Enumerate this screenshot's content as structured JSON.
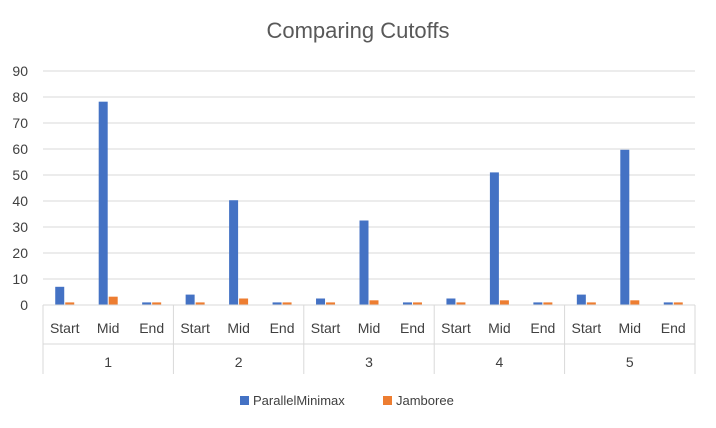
{
  "chart_data": {
    "type": "bar",
    "title": "Comparing Cutoffs",
    "xlabel": "",
    "ylabel": "",
    "ylim": [
      0,
      90
    ],
    "yticks": [
      0,
      10,
      20,
      30,
      40,
      50,
      60,
      70,
      80,
      90
    ],
    "grid": true,
    "legend_position": "bottom",
    "groups": [
      "1",
      "2",
      "3",
      "4",
      "5"
    ],
    "subcategories": [
      "Start",
      "Mid",
      "End"
    ],
    "series": [
      {
        "name": "ParallelMinimax",
        "color": "#4472C4",
        "values": [
          7,
          78.2,
          1,
          4,
          40.3,
          1,
          2.5,
          32.5,
          1,
          2.5,
          51,
          1,
          4,
          59.7,
          1
        ]
      },
      {
        "name": "Jamboree",
        "color": "#ED7D31",
        "values": [
          1,
          3.2,
          1,
          1,
          2.5,
          1,
          1,
          1.8,
          1,
          1,
          1.8,
          1,
          1,
          1.8,
          1
        ]
      }
    ]
  }
}
